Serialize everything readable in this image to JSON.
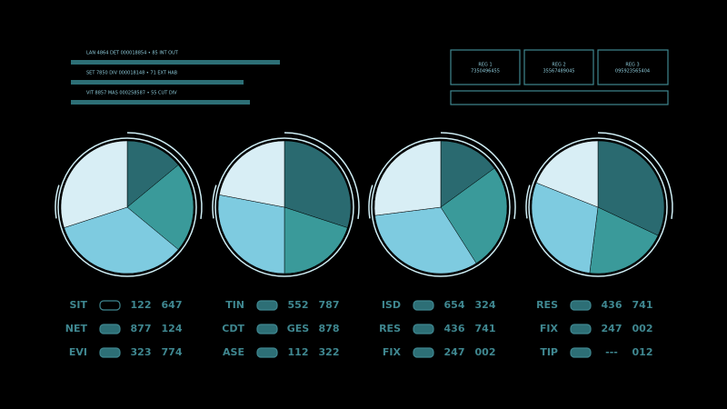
{
  "chart_data": [
    {
      "type": "pie",
      "values": [
        14,
        22,
        34,
        30
      ],
      "colors": [
        "#2a6a70",
        "#3a9a9a",
        "#7ecbe0",
        "#d8eef5"
      ]
    },
    {
      "type": "pie",
      "values": [
        30,
        20,
        28,
        22
      ],
      "colors": [
        "#2a6a70",
        "#3a9a9a",
        "#7ecbe0",
        "#d8eef5"
      ]
    },
    {
      "type": "pie",
      "values": [
        15,
        26,
        32,
        27
      ],
      "colors": [
        "#2a6a70",
        "#3a9a9a",
        "#7ecbe0",
        "#d8eef5"
      ]
    },
    {
      "type": "pie",
      "values": [
        32,
        20,
        29,
        19
      ],
      "colors": [
        "#2a6a70",
        "#3a9a9a",
        "#7ecbe0",
        "#d8eef5"
      ]
    }
  ],
  "header": {
    "lines": [
      "LAN 4864 DET 000018854 • 85 INT OUT",
      "SET 7850 DIV 000018148 • 71 EXT HAB",
      "VIT 8857 MAS 000258587 • 55 CUT DIV"
    ],
    "registers": [
      {
        "title": "REG 1",
        "code": "7350496455"
      },
      {
        "title": "REG 2",
        "code": "35567489045"
      },
      {
        "title": "REG 3",
        "code": "095923565404"
      }
    ]
  },
  "panels": [
    [
      [
        "SIT",
        "122",
        "647"
      ],
      [
        "NET",
        "877",
        "124"
      ],
      [
        "EVI",
        "323",
        "774"
      ]
    ],
    [
      [
        "TIN",
        "552",
        "787"
      ],
      [
        "CDT",
        "GES",
        "878"
      ],
      [
        "ASE",
        "112",
        "322"
      ]
    ],
    [
      [
        "ISD",
        "654",
        "324"
      ],
      [
        "RES",
        "436",
        "741"
      ],
      [
        "FIX",
        "247",
        "002"
      ]
    ],
    [
      [
        "RES",
        "436",
        "741"
      ],
      [
        "FIX",
        "247",
        "002"
      ],
      [
        "TIP",
        "---",
        "012"
      ]
    ]
  ]
}
